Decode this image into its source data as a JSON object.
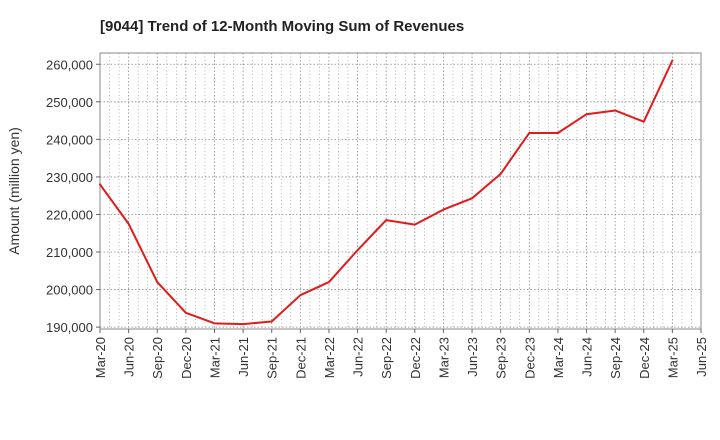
{
  "chart_data": {
    "type": "line",
    "title": "[9044]  Trend of 12-Month Moving Sum of Revenues",
    "xlabel": "",
    "ylabel": "Amount (million yen)",
    "ylim": [
      189500,
      263000
    ],
    "yticks": [
      190000,
      200000,
      210000,
      220000,
      230000,
      240000,
      250000,
      260000
    ],
    "ytick_labels": [
      "190,000",
      "200,000",
      "210,000",
      "220,000",
      "230,000",
      "240,000",
      "250,000",
      "260,000"
    ],
    "categories": [
      "Mar-20",
      "Jun-20",
      "Sep-20",
      "Dec-20",
      "Mar-21",
      "Jun-21",
      "Sep-21",
      "Dec-21",
      "Mar-22",
      "Jun-22",
      "Sep-22",
      "Dec-22",
      "Mar-23",
      "Jun-23",
      "Sep-23",
      "Dec-23",
      "Mar-24",
      "Jun-24",
      "Sep-24",
      "Dec-24",
      "Mar-25",
      "Jun-25"
    ],
    "grid": true,
    "legend": false,
    "series": [
      {
        "color": "#e01b1b",
        "values": [
          228000,
          217500,
          202000,
          193800,
          191000,
          190800,
          191500,
          198500,
          202000,
          210500,
          218500,
          217300,
          221300,
          224300,
          230800,
          241700,
          241700,
          246700,
          247700,
          244700,
          261000,
          null
        ]
      }
    ]
  }
}
